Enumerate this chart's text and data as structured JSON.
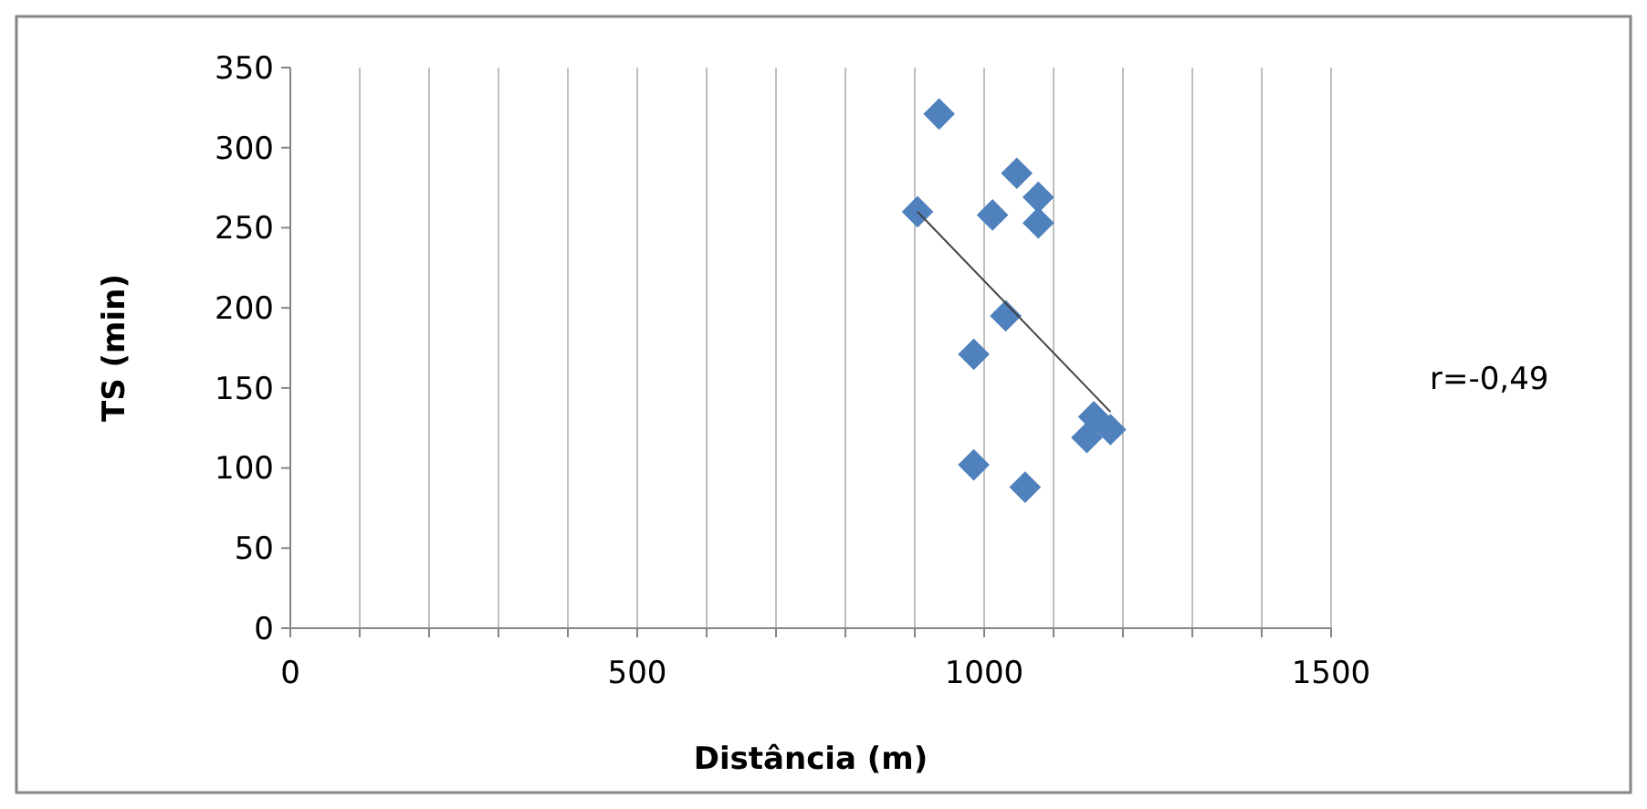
{
  "chart_data": {
    "type": "scatter",
    "xlabel": "Distância (m)",
    "ylabel": "TS (min)",
    "annotations": [
      "r=-0,49"
    ],
    "x": [
      935,
      1047,
      1078,
      904,
      1012,
      1078,
      1031,
      985,
      1158,
      1182,
      1148,
      985,
      1059
    ],
    "series": [
      {
        "color": "#4f81bd",
        "marker": "diamond",
        "values": [
          321,
          284,
          269,
          260,
          258,
          253,
          195,
          171,
          132,
          124,
          119,
          102,
          88
        ]
      },
      {
        "type": "line",
        "color": "#404040",
        "x": [
          904,
          1182
        ],
        "values": [
          260,
          135
        ],
        "marker": "none"
      }
    ],
    "xlim": [
      0,
      1500
    ],
    "ylim": [
      0,
      350
    ],
    "xticks": [
      0,
      {
        "value": 100,
        "label": null
      },
      {
        "value": 200,
        "label": null
      },
      {
        "value": 300,
        "label": null
      },
      {
        "value": 400,
        "label": null
      },
      500,
      {
        "value": 600,
        "label": null
      },
      {
        "value": 700,
        "label": null
      },
      {
        "value": 800,
        "label": null
      },
      {
        "value": 900,
        "label": null
      },
      1000,
      {
        "value": 1100,
        "label": null
      },
      {
        "value": 1200,
        "label": null
      },
      {
        "value": 1300,
        "label": null
      },
      {
        "value": 1400,
        "label": null
      },
      1500
    ],
    "yticks": [
      0,
      50,
      100,
      150,
      200,
      250,
      300,
      350
    ],
    "grid": "x"
  }
}
